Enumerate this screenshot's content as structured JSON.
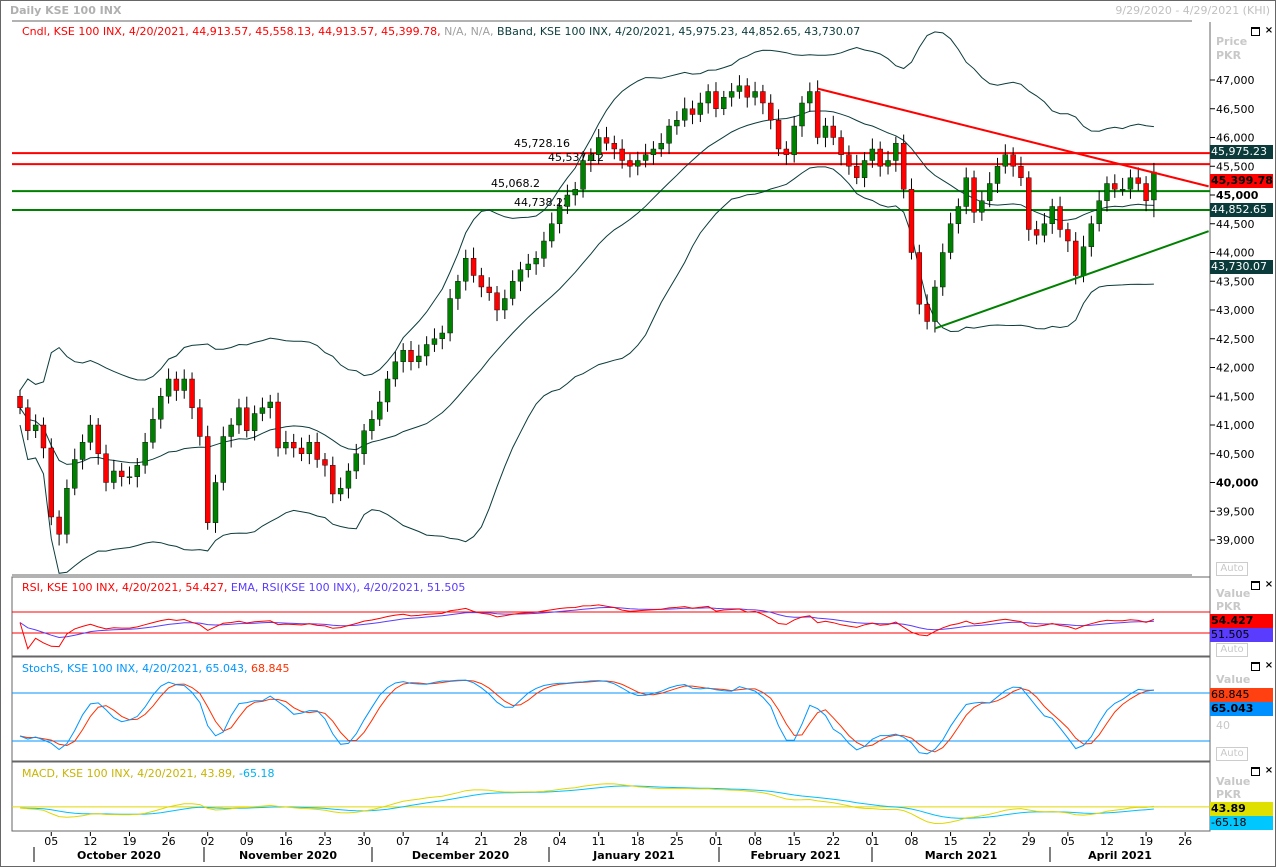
{
  "window": {
    "title": "Daily KSE 100 INX",
    "date_range": "9/29/2020 - 4/29/2021 (KHI)"
  },
  "legend": {
    "candle": "Cndl, KSE 100 INX, 4/20/2021, 44,913.57, 45,558.13, 44,913.57, 45,399.78,",
    "na": "N/A, N/A,",
    "bband": "BBand, KSE 100 INX, 4/20/2021, 45,975.23, 44,852.65, 43,730.07",
    "rsi": "RSI, KSE 100 INX, 4/20/2021, 54.427,",
    "rsi_ema": "EMA, RSI(KSE 100 INX), 4/20/2021, 51.505",
    "stoch_k": "StochS, KSE 100 INX, 4/20/2021, 65.043,",
    "stoch_d": "68.845",
    "macd": "MACD, KSE 100 INX, 4/20/2021, 43.89,",
    "macd_signal": "-65.18"
  },
  "price_axis": {
    "title": "Price",
    "unit": "PKR",
    "ticks": [
      "47,000",
      "46,500",
      "46,000",
      "45,500",
      "45,000",
      "44,500",
      "44,000",
      "43,500",
      "43,000",
      "42,500",
      "42,000",
      "41,500",
      "41,000",
      "40,500",
      "40,000",
      "39,500",
      "39,000"
    ],
    "tick_values": [
      47000,
      46500,
      46000,
      45500,
      45000,
      44500,
      44000,
      43500,
      43000,
      42500,
      42000,
      41500,
      41000,
      40500,
      40000,
      39500,
      39000
    ],
    "bold_ticks": [
      "45,000",
      "40,000"
    ],
    "auto_label": "Auto",
    "tags": {
      "bb_upper": "45,975.23",
      "last": "45,399.78",
      "bb_mid": "44,852.65",
      "bb_lower": "43,730.07"
    }
  },
  "rsi_panel": {
    "axis_title": "Value",
    "unit": "PKR",
    "tag_rsi": "54.427",
    "tag_ema": "51.505",
    "auto_label": "Auto"
  },
  "stoch_panel": {
    "axis_title": "Value",
    "tick": "40",
    "tag_d": "68.845",
    "tag_k": "65.043",
    "auto_label": "Auto"
  },
  "macd_panel": {
    "axis_title": "Value",
    "unit": "PKR",
    "tag_macd": "43.89",
    "tag_signal": "-65.18"
  },
  "x_axis": {
    "day_ticks": [
      "05",
      "12",
      "19",
      "26",
      "02",
      "09",
      "16",
      "23",
      "30",
      "07",
      "14",
      "21",
      "28",
      "04",
      "11",
      "18",
      "25",
      "01",
      "08",
      "15",
      "22",
      "01",
      "08",
      "15",
      "22",
      "29",
      "05",
      "12",
      "19",
      "26"
    ],
    "months": [
      "October 2020",
      "November 2020",
      "December 2020",
      "January 2021",
      "February 2021",
      "March 2021",
      "April 2021"
    ]
  },
  "colors": {
    "up": "#008000",
    "down": "#ff0000",
    "bband": "#0b3b3b",
    "rsi": "#ff0000",
    "rsi_ema": "#5a3cff",
    "stoch_k": "#0096ff",
    "stoch_d": "#ff3000",
    "macd": "#e0d800",
    "macd_signal": "#00c0ff"
  },
  "chart_data": {
    "type": "candlestick",
    "title": "Daily KSE 100 INX",
    "start_date": "2020-09-29",
    "end_date": "2021-04-20",
    "ylabel": "Price PKR",
    "ylim": [
      38700,
      47900
    ],
    "closes": [
      41300,
      40900,
      41000,
      40600,
      39400,
      39100,
      39900,
      40400,
      40700,
      41000,
      40500,
      40000,
      40200,
      40100,
      40100,
      40300,
      40700,
      41100,
      41500,
      41800,
      41600,
      41800,
      41300,
      40800,
      39300,
      40000,
      40800,
      41000,
      41300,
      40900,
      41200,
      41300,
      41400,
      40600,
      40700,
      40600,
      40500,
      40700,
      40400,
      40300,
      39800,
      39900,
      40200,
      40500,
      40900,
      41100,
      41400,
      41800,
      42100,
      42300,
      42100,
      42200,
      42400,
      42500,
      42600,
      43200,
      43500,
      43900,
      43600,
      43400,
      43300,
      43000,
      43200,
      43500,
      43700,
      43800,
      43900,
      44200,
      44500,
      44800,
      45000,
      45100,
      45600,
      45700,
      46000,
      45900,
      45800,
      45600,
      45500,
      45600,
      45700,
      45800,
      45900,
      46200,
      46300,
      46500,
      46400,
      46600,
      46800,
      46500,
      46700,
      46800,
      46900,
      46700,
      46800,
      46600,
      46300,
      45800,
      45700,
      46200,
      46600,
      46800,
      46000,
      46200,
      46000,
      45700,
      45500,
      45300,
      45600,
      45800,
      45500,
      45600,
      45900,
      45100,
      44000,
      43100,
      42800,
      43400,
      44000,
      44500,
      44800,
      45300,
      44700,
      44900,
      45200,
      45500,
      45700,
      45500,
      45300,
      44400,
      44300,
      44500,
      44800,
      44400,
      44200,
      43600,
      44100,
      44500,
      44900,
      45200,
      45100,
      45100,
      45300,
      45200,
      44900,
      45399.78
    ],
    "last_bar": {
      "open": 44913.57,
      "high": 45558.13,
      "low": 44913.57,
      "close": 45399.78
    },
    "bollinger": {
      "period": 20,
      "std": 2,
      "last": {
        "upper": 45975.23,
        "middle": 44852.65,
        "lower": 43730.07
      }
    },
    "horizontal_levels": [
      {
        "label": "45,728.16",
        "value": 45728.16,
        "color": "#ff0000"
      },
      {
        "label": "45,537.12",
        "value": 45537.12,
        "color": "#ff0000"
      },
      {
        "label": "45,068.2",
        "value": 45068.2,
        "color": "#008000"
      },
      {
        "label": "44,738.22",
        "value": 44738.22,
        "color": "#008000"
      }
    ],
    "trendlines": [
      {
        "name": "resistance",
        "color": "#ff0000",
        "points": [
          [
            102,
            46850
          ],
          [
            152,
            45150
          ]
        ]
      },
      {
        "name": "support",
        "color": "#008000",
        "points": [
          [
            117,
            42680
          ],
          [
            152,
            44370
          ]
        ]
      }
    ],
    "indicators": {
      "rsi": {
        "period": 14,
        "last": 54.427,
        "ema_last": 51.505,
        "levels": [
          70,
          30
        ]
      },
      "stoch": {
        "k_last": 65.043,
        "d_last": 68.845,
        "levels": [
          80,
          20
        ]
      },
      "macd": {
        "last": 43.89,
        "signal_last": -65.18
      }
    }
  }
}
